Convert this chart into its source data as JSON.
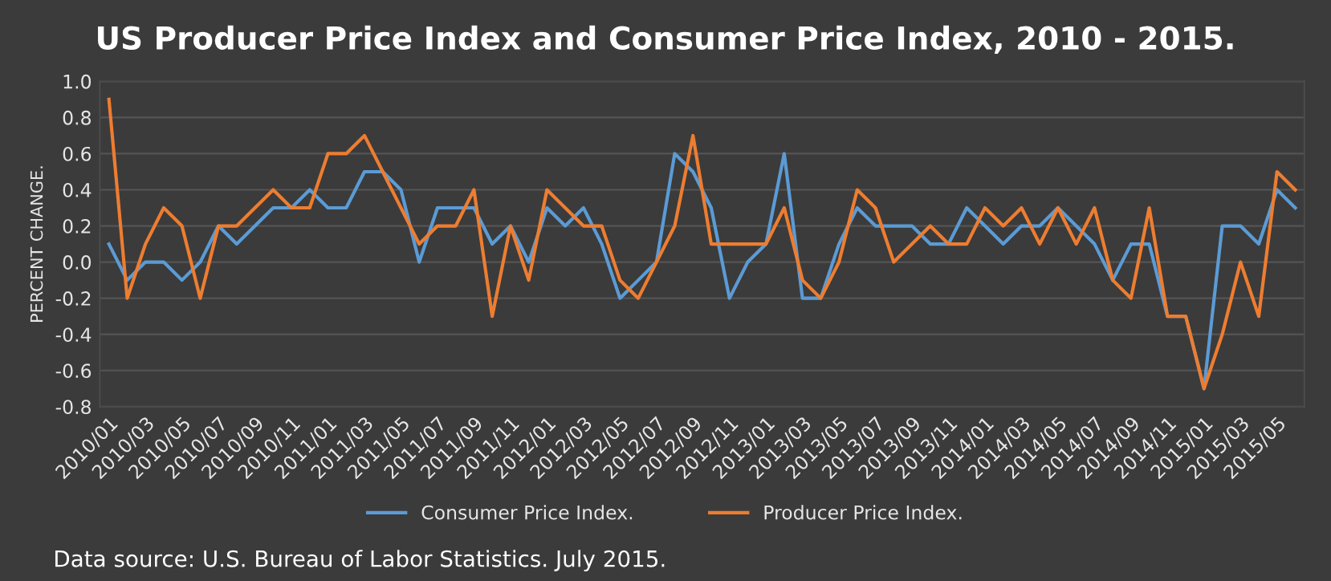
{
  "chart_data": {
    "type": "line",
    "title": "US Producer Price Index and Consumer Price Index, 2010 - 2015.",
    "ylabel": "PERCENT CHANGE.",
    "annotations": [
      "Data source: U.S. Bureau of Labor Statistics. July 2015."
    ],
    "categories": [
      "2010/01",
      null,
      "2010/03",
      null,
      "2010/05",
      null,
      "2010/07",
      null,
      "2010/09",
      null,
      "2010/11",
      null,
      "2011/01",
      null,
      "2011/03",
      null,
      "2011/05",
      null,
      "2011/07",
      null,
      "2011/09",
      null,
      "2011/11",
      null,
      "2012/01",
      null,
      "2012/03",
      null,
      "2012/05",
      null,
      "2012/07",
      null,
      "2012/09",
      null,
      "2012/11",
      null,
      "2013/01",
      null,
      "2013/03",
      null,
      "2013/05",
      null,
      "2013/07",
      null,
      "2013/09",
      null,
      "2013/11",
      null,
      "2014/01",
      null,
      "2014/03",
      null,
      "2014/05",
      null,
      "2014/07",
      null,
      "2014/09",
      null,
      "2014/11",
      null,
      "2015/01",
      null,
      "2015/03",
      null,
      "2015/05",
      null
    ],
    "series": [
      {
        "name": "Consumer Price Index.",
        "color": "#5b9bd5",
        "values": [
          0.1,
          -0.1,
          0.0,
          0.0,
          -0.1,
          0.0,
          0.2,
          0.1,
          0.2,
          0.3,
          0.3,
          0.4,
          0.3,
          0.3,
          0.5,
          0.5,
          0.4,
          0.0,
          0.3,
          0.3,
          0.3,
          0.1,
          0.2,
          0.0,
          0.3,
          0.2,
          0.3,
          0.1,
          -0.2,
          -0.1,
          0.0,
          0.6,
          0.5,
          0.3,
          -0.2,
          0.0,
          0.1,
          0.6,
          -0.2,
          -0.2,
          0.1,
          0.3,
          0.2,
          0.2,
          0.2,
          0.1,
          0.1,
          0.3,
          0.2,
          0.1,
          0.2,
          0.2,
          0.3,
          0.2,
          0.1,
          -0.1,
          0.1,
          0.1,
          -0.3,
          -0.3,
          -0.7,
          0.2,
          0.2,
          0.1,
          0.4,
          0.3
        ]
      },
      {
        "name": "Producer Price Index.",
        "color": "#ed7d31",
        "values": [
          0.9,
          -0.2,
          0.1,
          0.3,
          0.2,
          -0.2,
          0.2,
          0.2,
          0.3,
          0.4,
          0.3,
          0.3,
          0.6,
          0.6,
          0.7,
          0.5,
          0.3,
          0.1,
          0.2,
          0.2,
          0.4,
          -0.3,
          0.2,
          -0.1,
          0.4,
          0.3,
          0.2,
          0.2,
          -0.1,
          -0.2,
          0.0,
          0.2,
          0.7,
          0.1,
          0.1,
          0.1,
          0.1,
          0.3,
          -0.1,
          -0.2,
          0.0,
          0.4,
          0.3,
          0.0,
          0.1,
          0.2,
          0.1,
          0.1,
          0.3,
          0.2,
          0.3,
          0.1,
          0.3,
          0.1,
          0.3,
          -0.1,
          -0.2,
          0.3,
          -0.3,
          -0.3,
          -0.7,
          -0.4,
          0.0,
          -0.3,
          0.5,
          0.4
        ]
      }
    ],
    "ylim": [
      -0.8,
      1.0
    ],
    "yticks": [
      {
        "value": -0.8,
        "label": "-0.8"
      },
      {
        "value": -0.6,
        "label": "-0.6"
      },
      {
        "value": -0.4,
        "label": "-0.4"
      },
      {
        "value": -0.2,
        "label": "-0.2"
      },
      {
        "value": 0,
        "label": "0.0"
      },
      {
        "value": 0.2,
        "label": "0.2"
      },
      {
        "value": 0.4,
        "label": "0.4"
      },
      {
        "value": 0.6,
        "label": "0.6"
      },
      {
        "value": 0.8,
        "label": "0.8"
      },
      {
        "value": 1.0,
        "label": "1.0"
      }
    ],
    "grid": "y",
    "legend": "bottom",
    "marker": "none",
    "line_style": "solid"
  }
}
